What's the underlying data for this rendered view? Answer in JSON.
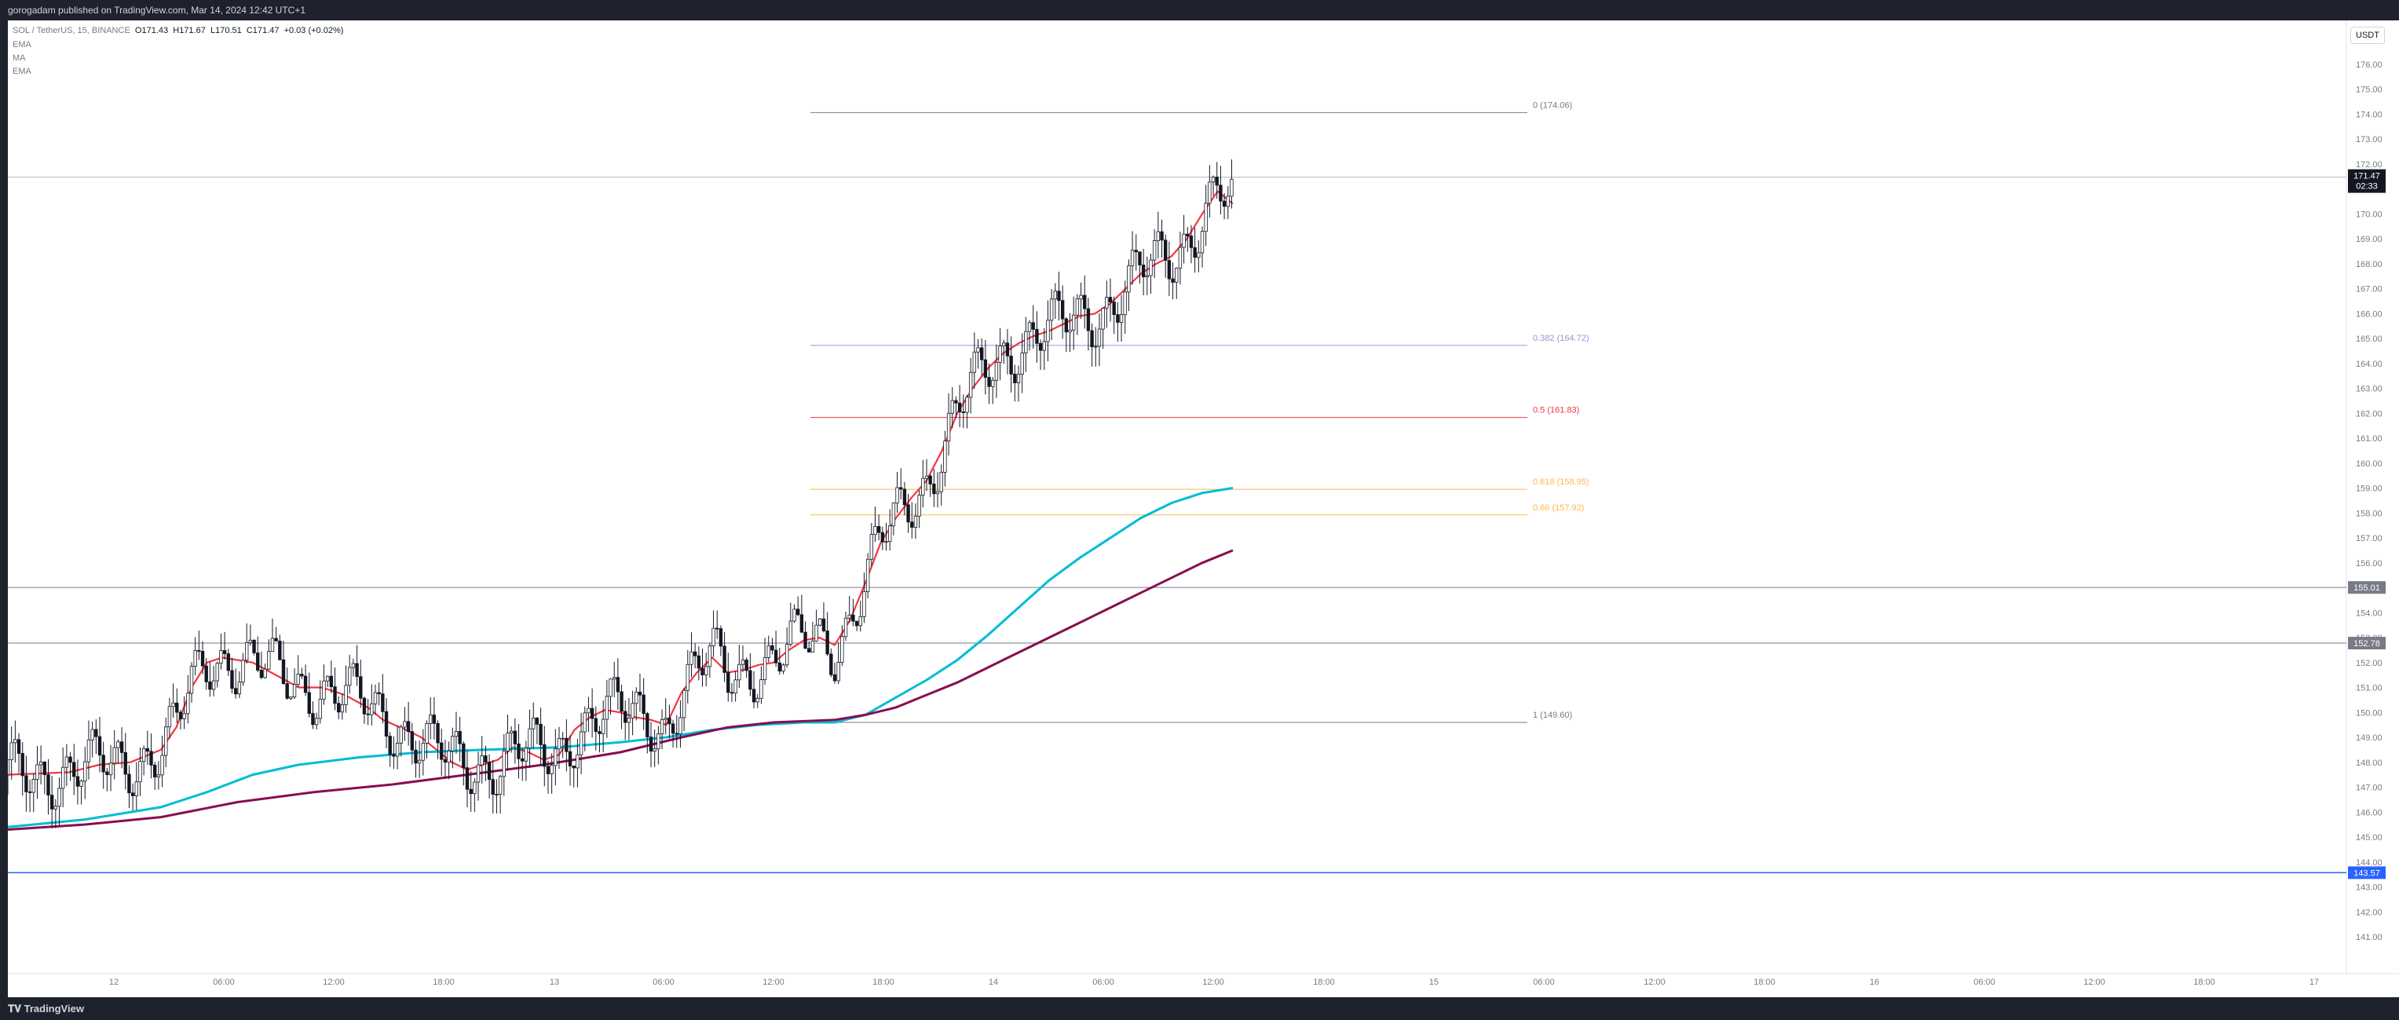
{
  "header": {
    "published_by": "gorogadam published on TradingView.com, Mar 14, 2024 12:42 UTC+1"
  },
  "legend": {
    "symbol": "SOL / TetherUS, 15, BINANCE",
    "open": "O171.43",
    "high": "H171.67",
    "low": "L170.51",
    "close": "C171.47",
    "change": "+0.03 (+0.02%)",
    "indicators": [
      "EMA",
      "MA",
      "EMA"
    ]
  },
  "price_axis": {
    "unit": "USDT",
    "last_price": "171.47",
    "countdown": "02:33",
    "ticks": [
      "177.00",
      "176.00",
      "175.00",
      "174.00",
      "173.00",
      "172.00",
      "171.00",
      "170.00",
      "169.00",
      "168.00",
      "167.00",
      "166.00",
      "165.00",
      "164.00",
      "163.00",
      "162.00",
      "161.00",
      "160.00",
      "159.00",
      "158.00",
      "157.00",
      "156.00",
      "155.00",
      "154.00",
      "153.00",
      "152.00",
      "151.00",
      "150.00",
      "149.00",
      "148.00",
      "147.00",
      "146.00",
      "145.00",
      "144.00",
      "143.00",
      "142.00",
      "141.00"
    ],
    "level_labels": [
      {
        "text": "155.01",
        "color": "#787b86"
      },
      {
        "text": "152.78",
        "color": "#787b86"
      },
      {
        "text": "143.57",
        "color": "#2962ff"
      }
    ]
  },
  "time_axis": {
    "ticks": [
      "12",
      "06:00",
      "12:00",
      "18:00",
      "13",
      "06:00",
      "12:00",
      "18:00",
      "14",
      "06:00",
      "12:00",
      "18:00",
      "15",
      "06:00",
      "12:00",
      "18:00",
      "16",
      "06:00",
      "12:00",
      "18:00",
      "17"
    ]
  },
  "fib_labels": [
    {
      "text": "0 (174.06)",
      "price": 174.06,
      "color": "#787b86"
    },
    {
      "text": "0.382 (164.72)",
      "price": 164.72,
      "color": "#9598d9"
    },
    {
      "text": "0.5 (161.83)",
      "price": 161.83,
      "color": "#f23645"
    },
    {
      "text": "0.618 (158.95)",
      "price": 158.95,
      "color": "#ffb74d"
    },
    {
      "text": "0.66 (157.92)",
      "price": 157.92,
      "color": "#ffb74d"
    },
    {
      "text": "1 (149.60)",
      "price": 149.6,
      "color": "#787b86"
    }
  ],
  "footer": {
    "brand": "TradingView"
  },
  "chart_data": {
    "type": "candlestick",
    "symbol": "SOL/USDT",
    "interval": "15",
    "ylim": [
      141,
      177.5
    ],
    "horizontal_levels": [
      {
        "price": 155.01,
        "color": "#787b86"
      },
      {
        "price": 152.78,
        "color": "#787b86"
      },
      {
        "price": 143.57,
        "color": "#2962ff"
      },
      {
        "price": 171.47,
        "color": "#b2b5be"
      }
    ],
    "series": [
      {
        "name": "EMA",
        "color": "#f23645",
        "role": "fast",
        "points": [
          [
            0,
            147.5
          ],
          [
            40,
            147.6
          ],
          [
            60,
            147.9
          ],
          [
            80,
            148.0
          ],
          [
            100,
            148.5
          ],
          [
            110,
            149.4
          ],
          [
            120,
            151.0
          ],
          [
            130,
            152.0
          ],
          [
            140,
            152.2
          ],
          [
            160,
            152.0
          ],
          [
            175,
            151.5
          ],
          [
            190,
            151.0
          ],
          [
            205,
            151.0
          ],
          [
            220,
            150.7
          ],
          [
            235,
            150.2
          ],
          [
            245,
            149.7
          ],
          [
            260,
            149.3
          ],
          [
            270,
            149.0
          ],
          [
            280,
            148.5
          ],
          [
            290,
            148.0
          ],
          [
            300,
            147.7
          ],
          [
            310,
            147.9
          ],
          [
            320,
            148.1
          ],
          [
            330,
            148.6
          ],
          [
            340,
            148.4
          ],
          [
            350,
            148.1
          ],
          [
            360,
            148.3
          ],
          [
            370,
            149.3
          ],
          [
            380,
            149.8
          ],
          [
            390,
            150.1
          ],
          [
            400,
            150.0
          ],
          [
            410,
            149.8
          ],
          [
            420,
            149.7
          ],
          [
            430,
            149.5
          ],
          [
            440,
            150.8
          ],
          [
            450,
            151.6
          ],
          [
            460,
            152.2
          ],
          [
            470,
            151.6
          ],
          [
            480,
            151.7
          ],
          [
            490,
            151.9
          ],
          [
            500,
            152.0
          ],
          [
            510,
            152.5
          ],
          [
            520,
            152.9
          ],
          [
            530,
            153.0
          ],
          [
            540,
            152.7
          ],
          [
            550,
            153.7
          ],
          [
            560,
            155.2
          ],
          [
            570,
            156.8
          ],
          [
            580,
            157.8
          ],
          [
            590,
            158.6
          ],
          [
            600,
            159.3
          ],
          [
            610,
            160.5
          ],
          [
            620,
            162.0
          ],
          [
            630,
            163.0
          ],
          [
            640,
            163.8
          ],
          [
            650,
            164.4
          ],
          [
            660,
            164.8
          ],
          [
            670,
            165.1
          ],
          [
            680,
            165.3
          ],
          [
            690,
            165.6
          ],
          [
            700,
            165.9
          ],
          [
            710,
            166.0
          ],
          [
            720,
            166.4
          ],
          [
            730,
            167.0
          ],
          [
            740,
            167.6
          ],
          [
            750,
            168.0
          ],
          [
            760,
            168.3
          ],
          [
            770,
            169.0
          ],
          [
            780,
            170.0
          ],
          [
            790,
            170.9
          ],
          [
            800,
            170.4
          ]
        ]
      },
      {
        "name": "MA",
        "color": "#00bcd4",
        "role": "medium",
        "points": [
          [
            0,
            145.4
          ],
          [
            50,
            145.7
          ],
          [
            100,
            146.2
          ],
          [
            130,
            146.8
          ],
          [
            160,
            147.5
          ],
          [
            190,
            147.9
          ],
          [
            230,
            148.2
          ],
          [
            270,
            148.4
          ],
          [
            310,
            148.5
          ],
          [
            360,
            148.6
          ],
          [
            400,
            148.8
          ],
          [
            430,
            149.0
          ],
          [
            460,
            149.3
          ],
          [
            490,
            149.5
          ],
          [
            520,
            149.6
          ],
          [
            540,
            149.6
          ],
          [
            560,
            149.9
          ],
          [
            580,
            150.6
          ],
          [
            600,
            151.3
          ],
          [
            620,
            152.1
          ],
          [
            640,
            153.1
          ],
          [
            660,
            154.2
          ],
          [
            680,
            155.3
          ],
          [
            700,
            156.2
          ],
          [
            720,
            157.0
          ],
          [
            740,
            157.8
          ],
          [
            760,
            158.4
          ],
          [
            780,
            158.8
          ],
          [
            800,
            159.0
          ]
        ]
      },
      {
        "name": "EMA",
        "color": "#880e4f",
        "role": "slow",
        "points": [
          [
            0,
            145.3
          ],
          [
            50,
            145.5
          ],
          [
            100,
            145.8
          ],
          [
            150,
            146.4
          ],
          [
            200,
            146.8
          ],
          [
            250,
            147.1
          ],
          [
            300,
            147.5
          ],
          [
            350,
            147.9
          ],
          [
            400,
            148.4
          ],
          [
            440,
            149.0
          ],
          [
            470,
            149.4
          ],
          [
            500,
            149.6
          ],
          [
            540,
            149.7
          ],
          [
            560,
            149.9
          ],
          [
            580,
            150.2
          ],
          [
            600,
            150.7
          ],
          [
            620,
            151.2
          ],
          [
            640,
            151.8
          ],
          [
            660,
            152.4
          ],
          [
            680,
            153.0
          ],
          [
            700,
            153.6
          ],
          [
            720,
            154.2
          ],
          [
            740,
            154.8
          ],
          [
            760,
            155.4
          ],
          [
            780,
            156.0
          ],
          [
            800,
            156.5
          ]
        ]
      }
    ],
    "fib_retracement": {
      "from_price": 149.6,
      "to_price": 174.06,
      "levels": [
        0,
        0.382,
        0.5,
        0.618,
        0.66,
        1
      ]
    }
  }
}
